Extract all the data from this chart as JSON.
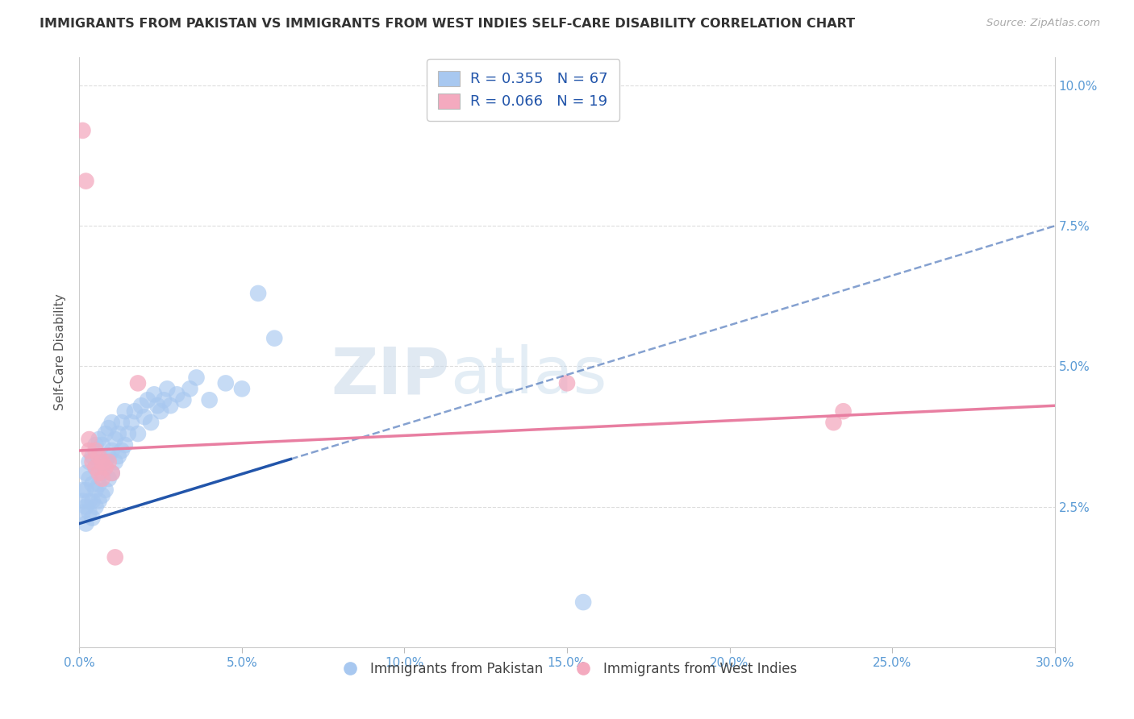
{
  "title": "IMMIGRANTS FROM PAKISTAN VS IMMIGRANTS FROM WEST INDIES SELF-CARE DISABILITY CORRELATION CHART",
  "source": "Source: ZipAtlas.com",
  "ylabel": "Self-Care Disability",
  "yticks": [
    "2.5%",
    "5.0%",
    "7.5%",
    "10.0%"
  ],
  "ytick_vals": [
    0.025,
    0.05,
    0.075,
    0.1
  ],
  "xlim": [
    0.0,
    0.3
  ],
  "ylim": [
    0.0,
    0.105
  ],
  "xtick_vals": [
    0.0,
    0.05,
    0.1,
    0.15,
    0.2,
    0.25,
    0.3
  ],
  "xtick_labels": [
    "0.0%",
    "5.0%",
    "10.0%",
    "15.0%",
    "20.0%",
    "25.0%",
    "30.0%"
  ],
  "legend_label1": "R = 0.355   N = 67",
  "legend_label2": "R = 0.066   N = 19",
  "legend_bottom1": "Immigrants from Pakistan",
  "legend_bottom2": "Immigrants from West Indies",
  "color_pakistan": "#A8C8F0",
  "color_westindies": "#F4AABF",
  "line_color_pakistan": "#2255AA",
  "line_color_westindies": "#E87EA1",
  "watermark_zip": "ZIP",
  "watermark_atlas": "atlas",
  "background_color": "#FFFFFF",
  "grid_color": "#DDDDDD",
  "pakistan_x": [
    0.001,
    0.001,
    0.001,
    0.002,
    0.002,
    0.002,
    0.002,
    0.003,
    0.003,
    0.003,
    0.003,
    0.004,
    0.004,
    0.004,
    0.004,
    0.005,
    0.005,
    0.005,
    0.005,
    0.006,
    0.006,
    0.006,
    0.006,
    0.007,
    0.007,
    0.007,
    0.008,
    0.008,
    0.008,
    0.009,
    0.009,
    0.009,
    0.01,
    0.01,
    0.01,
    0.011,
    0.011,
    0.012,
    0.012,
    0.013,
    0.013,
    0.014,
    0.014,
    0.015,
    0.016,
    0.017,
    0.018,
    0.019,
    0.02,
    0.021,
    0.022,
    0.023,
    0.024,
    0.025,
    0.026,
    0.027,
    0.028,
    0.03,
    0.032,
    0.034,
    0.036,
    0.04,
    0.045,
    0.05,
    0.055,
    0.06,
    0.155
  ],
  "pakistan_y": [
    0.024,
    0.026,
    0.028,
    0.022,
    0.025,
    0.028,
    0.031,
    0.024,
    0.026,
    0.03,
    0.033,
    0.023,
    0.026,
    0.029,
    0.034,
    0.025,
    0.028,
    0.032,
    0.036,
    0.026,
    0.029,
    0.033,
    0.037,
    0.027,
    0.031,
    0.036,
    0.028,
    0.033,
    0.038,
    0.03,
    0.034,
    0.039,
    0.031,
    0.035,
    0.04,
    0.033,
    0.037,
    0.034,
    0.038,
    0.035,
    0.04,
    0.036,
    0.042,
    0.038,
    0.04,
    0.042,
    0.038,
    0.043,
    0.041,
    0.044,
    0.04,
    0.045,
    0.043,
    0.042,
    0.044,
    0.046,
    0.043,
    0.045,
    0.044,
    0.046,
    0.048,
    0.044,
    0.047,
    0.046,
    0.063,
    0.055,
    0.008
  ],
  "westindies_x": [
    0.001,
    0.002,
    0.003,
    0.003,
    0.004,
    0.005,
    0.005,
    0.006,
    0.006,
    0.007,
    0.007,
    0.008,
    0.009,
    0.01,
    0.011,
    0.018,
    0.15,
    0.232,
    0.235
  ],
  "westindies_y": [
    0.092,
    0.083,
    0.035,
    0.037,
    0.033,
    0.032,
    0.035,
    0.031,
    0.034,
    0.03,
    0.033,
    0.032,
    0.033,
    0.031,
    0.016,
    0.047,
    0.047,
    0.04,
    0.042
  ],
  "line1_x0": 0.0,
  "line1_x1": 0.3,
  "line1_y0": 0.022,
  "line1_y1": 0.075,
  "line_solid_end": 0.065,
  "line2_x0": 0.0,
  "line2_x1": 0.3,
  "line2_y0": 0.035,
  "line2_y1": 0.043
}
